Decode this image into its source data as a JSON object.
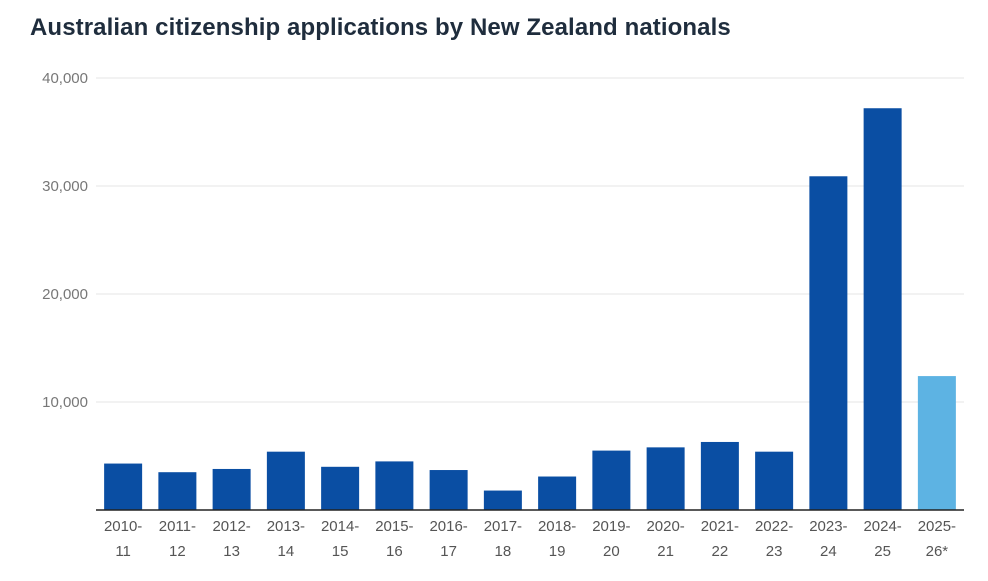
{
  "chart_data": {
    "type": "bar",
    "title": "Australian citizenship applications by New Zealand nationals",
    "xlabel": "",
    "ylabel": "",
    "ylim": [
      0,
      40000
    ],
    "yticks": [
      10000,
      20000,
      30000,
      40000
    ],
    "ytick_labels": [
      "10,000",
      "20,000",
      "30,000",
      "40,000"
    ],
    "grid": true,
    "categories": [
      {
        "line1": "2010-",
        "line2": "11"
      },
      {
        "line1": "2011-",
        "line2": "12"
      },
      {
        "line1": "2012-",
        "line2": "13"
      },
      {
        "line1": "2013-",
        "line2": "14"
      },
      {
        "line1": "2014-",
        "line2": "15"
      },
      {
        "line1": "2015-",
        "line2": "16"
      },
      {
        "line1": "2016-",
        "line2": "17"
      },
      {
        "line1": "2017-",
        "line2": "18"
      },
      {
        "line1": "2018-",
        "line2": "19"
      },
      {
        "line1": "2019-",
        "line2": "20"
      },
      {
        "line1": "2020-",
        "line2": "21"
      },
      {
        "line1": "2021-",
        "line2": "22"
      },
      {
        "line1": "2022-",
        "line2": "23"
      },
      {
        "line1": "2023-",
        "line2": "24"
      },
      {
        "line1": "2024-",
        "line2": "25"
      },
      {
        "line1": "2025-",
        "line2": "26*"
      }
    ],
    "values": [
      4300,
      3500,
      3800,
      5400,
      4000,
      4500,
      3700,
      1800,
      3100,
      5500,
      5800,
      6300,
      5400,
      30900,
      37200,
      12400
    ],
    "colors": {
      "primary": "#0a4ea3",
      "partial_year": "#5db3e3",
      "grid": "#e4e4e4",
      "axis": "#222222"
    },
    "highlight_index": 15
  }
}
